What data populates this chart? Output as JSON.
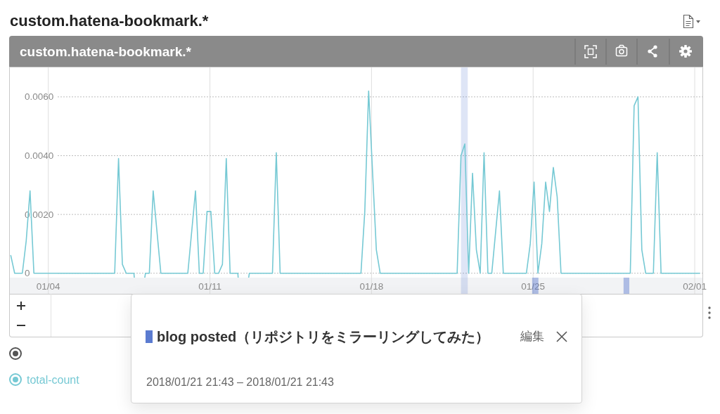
{
  "chart_data": {
    "type": "line",
    "title": "custom.hatena-bookmark.*",
    "subtitle": "custom.hatena-bookmark.*",
    "x": [
      "2018-01-02T09:00",
      "2018-01-02T13:00",
      "2018-01-02T21:00",
      "2018-01-03T01:00",
      "2018-01-03T05:00",
      "2018-01-03T09:00",
      "2018-01-06T21:00",
      "2018-01-07T01:00",
      "2018-01-07T05:00",
      "2018-01-07T09:00",
      "2018-01-07T17:00",
      "2018-01-07T21:00",
      "2018-01-08T05:00",
      "2018-01-08T09:00",
      "2018-01-08T13:00",
      "2018-01-08T21:00",
      "2018-01-10T01:00",
      "2018-01-10T09:00",
      "2018-01-10T13:00",
      "2018-01-10T17:00",
      "2018-01-10T21:00",
      "2018-01-11T01:00",
      "2018-01-11T05:00",
      "2018-01-11T09:00",
      "2018-01-11T13:00",
      "2018-01-11T17:00",
      "2018-01-11T21:00",
      "2018-01-12T05:00",
      "2018-01-12T09:00",
      "2018-01-12T17:00",
      "2018-01-13T17:00",
      "2018-01-13T21:00",
      "2018-01-14T01:00",
      "2018-01-17T13:00",
      "2018-01-17T17:00",
      "2018-01-17T21:00",
      "2018-01-18T05:00",
      "2018-01-18T09:00",
      "2018-01-21T17:00",
      "2018-01-21T21:00",
      "2018-01-22T01:00",
      "2018-01-22T05:00",
      "2018-01-22T09:00",
      "2018-01-22T13:00",
      "2018-01-22T17:00",
      "2018-01-22T21:00",
      "2018-01-23T01:00",
      "2018-01-23T05:00",
      "2018-01-23T13:00",
      "2018-01-23T17:00",
      "2018-01-24T17:00",
      "2018-01-24T21:00",
      "2018-01-25T01:00",
      "2018-01-25T05:00",
      "2018-01-25T09:00",
      "2018-01-25T13:00",
      "2018-01-25T17:00",
      "2018-01-25T21:00",
      "2018-01-26T01:00",
      "2018-01-26T05:00",
      "2018-01-29T05:00",
      "2018-01-29T09:00",
      "2018-01-29T13:00",
      "2018-01-29T17:00",
      "2018-01-29T21:00",
      "2018-01-30T05:00",
      "2018-01-30T09:00",
      "2018-01-30T13:00",
      "2018-02-01T05:00"
    ],
    "series": [
      {
        "name": "total-count",
        "color": "#76c9d4",
        "values": [
          0.0006,
          0,
          0,
          0.0011,
          0.0028,
          0,
          0,
          0.0039,
          0.0003,
          0,
          0,
          null,
          0,
          0,
          0.0028,
          0,
          0,
          0.0028,
          0,
          0,
          0.0021,
          0.0021,
          0,
          0,
          0.0003,
          0.0039,
          0,
          0,
          null,
          0,
          0,
          0.0041,
          0,
          0,
          0.0021,
          0.0062,
          0.0008,
          0,
          0,
          0.004,
          0.0044,
          0,
          0.0034,
          0.0008,
          0,
          0.0041,
          0,
          0,
          0.0028,
          0,
          0,
          0.001,
          0.0031,
          0,
          0.001,
          0.0031,
          0.0021,
          0.0036,
          0.0026,
          0,
          0,
          0.0057,
          0.006,
          0.0008,
          0,
          0,
          0.0041,
          0,
          0
        ]
      }
    ],
    "xlim": [
      "2018-01-02T08:00",
      "2018-02-01T08:00"
    ],
    "xticks": [
      {
        "value": "2018-01-04",
        "label": "01/04"
      },
      {
        "value": "2018-01-11",
        "label": "01/11"
      },
      {
        "value": "2018-01-18",
        "label": "01/18"
      },
      {
        "value": "2018-01-25",
        "label": "01/25"
      },
      {
        "value": "2018-02-01",
        "label": "02/01"
      }
    ],
    "ylim": [
      -0.0007,
      0.007
    ],
    "yticks": [
      0,
      {
        "value": 0.002,
        "label": "0.0020"
      },
      {
        "value": 0.004,
        "label": "0.0040"
      },
      {
        "value": 0.006,
        "label": "0.0060"
      }
    ],
    "grid": true,
    "legend": "bottom left",
    "bands": [
      {
        "axis": "x",
        "from": "2018-01-21T21:00",
        "to": "2018-01-22T04:00",
        "label": "blog posted（リポジトリをミラーリングしてみた）",
        "color": "#5b7bd0"
      },
      {
        "axis": "x",
        "from": "2018-01-24T23:00",
        "to": "2018-01-25T05:30",
        "color": "#5b7bd0"
      },
      {
        "axis": "x",
        "from": "2018-01-28T22:00",
        "to": "2018-01-29T04:00",
        "color": "#5b7bd0"
      }
    ],
    "annotations": [
      "2018/01/21 21:43 – 2018/01/21 21:43",
      "編集"
    ]
  }
}
